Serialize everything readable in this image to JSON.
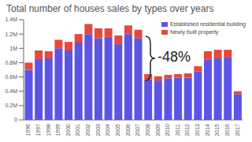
{
  "chart_data": {
    "type": "bar",
    "title": "Total number of houses sales by types over years",
    "categories": [
      "1996",
      "1997",
      "1998",
      "1999",
      "2000",
      "2001",
      "2002",
      "2003",
      "2004",
      "2005",
      "2006",
      "2007",
      "2008",
      "2009",
      "2010",
      "2011",
      "2012",
      "2013",
      "2014",
      "2015",
      "2016",
      "2017"
    ],
    "series": [
      {
        "name": "Established residential building",
        "color": "#5b55e6",
        "values": [
          700000,
          850000,
          860000,
          1000000,
          970000,
          1080000,
          1200000,
          1140000,
          1160000,
          1060000,
          1200000,
          1140000,
          570000,
          550000,
          580000,
          590000,
          590000,
          680000,
          840000,
          860000,
          870000,
          360000
        ]
      },
      {
        "name": "Newly built property",
        "color": "#e8473c",
        "values": [
          100000,
          120000,
          100000,
          120000,
          120000,
          120000,
          140000,
          140000,
          120000,
          120000,
          120000,
          120000,
          70000,
          60000,
          50000,
          50000,
          60000,
          70000,
          120000,
          120000,
          110000,
          40000
        ]
      }
    ],
    "stacked": true,
    "ylim": [
      0,
      1400000
    ],
    "yticks": [
      0,
      {
        "value": 200000,
        "label": "0.2M"
      },
      {
        "value": 400000,
        "label": "0.4M"
      },
      {
        "value": 600000,
        "label": "0.6M"
      },
      {
        "value": 800000,
        "label": "0.8M"
      },
      {
        "value": 1000000,
        "label": "1M"
      },
      {
        "value": 1200000,
        "label": "1.2M"
      },
      {
        "value": 1400000,
        "label": "1.4M"
      }
    ],
    "legend": "upper right",
    "annotations": [
      "-48%"
    ]
  }
}
